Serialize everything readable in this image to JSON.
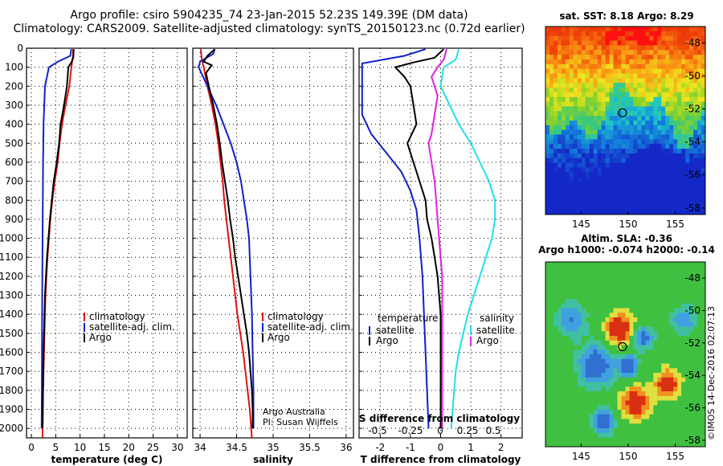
{
  "header": {
    "line1": "Argo profile: csiro 5904235_74 23-Jan-2015 52.23S 149.39E (DM data)",
    "line2": "Climatology: CARS2009. Satellite-adjusted climatology: synTS_20150123.nc (0.72d earlier)"
  },
  "colors": {
    "climatology": "#e01010",
    "satellite": "#1020c8",
    "argo": "#000000",
    "sat_salinity": "#20e0e8",
    "argo_salinity": "#e020e0"
  },
  "chart_data": [
    {
      "type": "line",
      "id": "temperature",
      "xlabel": "temperature (deg C)",
      "ylim": [
        2050,
        0
      ],
      "xlim": [
        -1,
        32
      ],
      "xticks": [
        "0",
        "5",
        "10",
        "15",
        "20",
        "25",
        "30"
      ],
      "yticks": [
        "0",
        "100",
        "200",
        "300",
        "400",
        "500",
        "600",
        "700",
        "800",
        "900",
        "1000",
        "1100",
        "1200",
        "1300",
        "1400",
        "1500",
        "1600",
        "1700",
        "1800",
        "1900",
        "2000"
      ],
      "grid": true,
      "legend": [
        "climatology",
        "satellite-adj. clim.",
        "Argo"
      ],
      "series": [
        {
          "name": "climatology",
          "color": "#e01010",
          "points": [
            [
              8.6,
              5
            ],
            [
              8.5,
              50
            ],
            [
              8.2,
              100
            ],
            [
              7.8,
              200
            ],
            [
              7.0,
              300
            ],
            [
              6.3,
              400
            ],
            [
              5.8,
              500
            ],
            [
              5.4,
              600
            ],
            [
              4.8,
              700
            ],
            [
              4.3,
              800
            ],
            [
              3.9,
              900
            ],
            [
              3.6,
              1000
            ],
            [
              3.3,
              1100
            ],
            [
              3.1,
              1200
            ],
            [
              2.9,
              1300
            ],
            [
              2.8,
              1400
            ],
            [
              2.7,
              1500
            ],
            [
              2.6,
              1600
            ],
            [
              2.5,
              1700
            ],
            [
              2.4,
              1800
            ],
            [
              2.35,
              1900
            ],
            [
              2.3,
              2000
            ],
            [
              2.3,
              2050
            ]
          ]
        },
        {
          "name": "satellite-adj. clim.",
          "color": "#1020c8",
          "points": [
            [
              8.2,
              5
            ],
            [
              8.0,
              40
            ],
            [
              5.5,
              70
            ],
            [
              3.6,
              100
            ],
            [
              2.8,
              200
            ],
            [
              2.5,
              400
            ],
            [
              2.4,
              600
            ],
            [
              2.3,
              1000
            ],
            [
              2.2,
              1400
            ],
            [
              2.15,
              1800
            ],
            [
              2.1,
              2000
            ]
          ]
        },
        {
          "name": "Argo",
          "color": "#000000",
          "points": [
            [
              8.7,
              5
            ],
            [
              8.6,
              50
            ],
            [
              8.2,
              75
            ],
            [
              7.6,
              100
            ],
            [
              7.3,
              200
            ],
            [
              6.7,
              300
            ],
            [
              6.0,
              400
            ],
            [
              5.7,
              500
            ],
            [
              5.2,
              600
            ],
            [
              4.6,
              700
            ],
            [
              4.2,
              800
            ],
            [
              3.8,
              900
            ],
            [
              3.5,
              1000
            ],
            [
              3.2,
              1100
            ],
            [
              3.0,
              1200
            ],
            [
              2.8,
              1300
            ],
            [
              2.7,
              1400
            ],
            [
              2.6,
              1500
            ],
            [
              2.5,
              1600
            ],
            [
              2.45,
              1700
            ],
            [
              2.4,
              1800
            ],
            [
              2.35,
              1900
            ],
            [
              2.3,
              2000
            ]
          ]
        }
      ]
    },
    {
      "type": "line",
      "id": "salinity",
      "xlabel": "salinity",
      "ylim": [
        2050,
        0
      ],
      "xlim": [
        33.9,
        36.1
      ],
      "xticks": [
        "34",
        "34.5",
        "35",
        "35.5",
        "36"
      ],
      "grid": true,
      "legend": [
        "climatology",
        "satellite-adj. clim.",
        "Argo"
      ],
      "credits": [
        "Argo Australia",
        "PI: Susan Wijffels"
      ],
      "series": [
        {
          "name": "climatology",
          "color": "#e01010",
          "points": [
            [
              34.01,
              5
            ],
            [
              34.02,
              50
            ],
            [
              34.05,
              100
            ],
            [
              34.1,
              200
            ],
            [
              34.16,
              300
            ],
            [
              34.21,
              400
            ],
            [
              34.25,
              500
            ],
            [
              34.28,
              600
            ],
            [
              34.31,
              700
            ],
            [
              34.33,
              800
            ],
            [
              34.36,
              900
            ],
            [
              34.39,
              1000
            ],
            [
              34.42,
              1100
            ],
            [
              34.45,
              1200
            ],
            [
              34.48,
              1300
            ],
            [
              34.51,
              1400
            ],
            [
              34.55,
              1500
            ],
            [
              34.59,
              1600
            ],
            [
              34.62,
              1700
            ],
            [
              34.65,
              1800
            ],
            [
              34.68,
              1900
            ],
            [
              34.7,
              2000
            ],
            [
              34.71,
              2050
            ]
          ]
        },
        {
          "name": "satellite-adj. clim.",
          "color": "#1020c8",
          "points": [
            [
              34.2,
              5
            ],
            [
              34.18,
              30
            ],
            [
              34.0,
              70
            ],
            [
              33.98,
              100
            ],
            [
              34.1,
              200
            ],
            [
              34.22,
              300
            ],
            [
              34.32,
              400
            ],
            [
              34.42,
              500
            ],
            [
              34.5,
              600
            ],
            [
              34.56,
              700
            ],
            [
              34.6,
              800
            ],
            [
              34.64,
              900
            ],
            [
              34.67,
              1000
            ],
            [
              34.69,
              1200
            ],
            [
              34.71,
              1400
            ],
            [
              34.72,
              1600
            ],
            [
              34.73,
              1800
            ],
            [
              34.73,
              2000
            ]
          ]
        },
        {
          "name": "Argo",
          "color": "#000000",
          "points": [
            [
              34.2,
              5
            ],
            [
              34.1,
              40
            ],
            [
              34.05,
              70
            ],
            [
              34.16,
              90
            ],
            [
              34.08,
              130
            ],
            [
              34.12,
              200
            ],
            [
              34.18,
              300
            ],
            [
              34.23,
              400
            ],
            [
              34.27,
              500
            ],
            [
              34.3,
              600
            ],
            [
              34.34,
              700
            ],
            [
              34.38,
              800
            ],
            [
              34.41,
              900
            ],
            [
              34.45,
              1000
            ],
            [
              34.48,
              1100
            ],
            [
              34.52,
              1200
            ],
            [
              34.56,
              1300
            ],
            [
              34.6,
              1400
            ],
            [
              34.64,
              1500
            ],
            [
              34.67,
              1600
            ],
            [
              34.69,
              1700
            ],
            [
              34.71,
              1800
            ],
            [
              34.72,
              1900
            ],
            [
              34.72,
              2000
            ]
          ]
        }
      ]
    },
    {
      "type": "line",
      "id": "difference",
      "xlabel": "T difference from climatology",
      "xlim": [
        -2.7,
        2.7
      ],
      "ylim": [
        2050,
        0
      ],
      "xticks": [
        "-2",
        "-1",
        "0",
        "1",
        "2"
      ],
      "s_xlabel": "S difference from climatology",
      "s_xticks": [
        "-0.5",
        "-0.25",
        "0",
        "0.25",
        "0.5"
      ],
      "grid": true,
      "legend_left_title": "temperature",
      "legend_right_title": "salinity",
      "legend_left": [
        "satellite",
        "Argo"
      ],
      "legend_right": [
        "satellite",
        "Argo"
      ],
      "series": [
        {
          "name": "T satellite",
          "color": "#1020c8",
          "points": [
            [
              -0.5,
              5
            ],
            [
              -1.2,
              40
            ],
            [
              -2.6,
              80
            ],
            [
              -2.6,
              350
            ],
            [
              -2.3,
              450
            ],
            [
              -1.8,
              550
            ],
            [
              -1.3,
              650
            ],
            [
              -1.0,
              750
            ],
            [
              -0.8,
              850
            ],
            [
              -0.7,
              1000
            ],
            [
              -0.6,
              1200
            ],
            [
              -0.55,
              1400
            ],
            [
              -0.5,
              1600
            ],
            [
              -0.45,
              1800
            ],
            [
              -0.4,
              2000
            ]
          ]
        },
        {
          "name": "T Argo",
          "color": "#000000",
          "points": [
            [
              0.1,
              5
            ],
            [
              -0.2,
              50
            ],
            [
              -0.9,
              75
            ],
            [
              -1.5,
              100
            ],
            [
              -1.2,
              150
            ],
            [
              -1.0,
              200
            ],
            [
              -0.9,
              300
            ],
            [
              -0.8,
              400
            ],
            [
              -1.1,
              500
            ],
            [
              -0.9,
              600
            ],
            [
              -0.7,
              700
            ],
            [
              -0.5,
              800
            ],
            [
              -0.45,
              900
            ],
            [
              -0.3,
              1000
            ],
            [
              -0.2,
              1100
            ],
            [
              -0.1,
              1200
            ],
            [
              -0.05,
              1300
            ],
            [
              0.0,
              1400
            ],
            [
              0.0,
              1600
            ],
            [
              0.0,
              1800
            ],
            [
              0.0,
              2000
            ]
          ]
        },
        {
          "name": "S satellite",
          "color": "#20e0e8",
          "points": [
            [
              0.6,
              5
            ],
            [
              0.5,
              60
            ],
            [
              0.1,
              100
            ],
            [
              0.0,
              200
            ],
            [
              0.3,
              300
            ],
            [
              0.6,
              400
            ],
            [
              1.0,
              500
            ],
            [
              1.3,
              600
            ],
            [
              1.6,
              700
            ],
            [
              1.8,
              800
            ],
            [
              1.8,
              900
            ],
            [
              1.7,
              1000
            ],
            [
              1.5,
              1100
            ],
            [
              1.3,
              1200
            ],
            [
              1.1,
              1300
            ],
            [
              0.9,
              1400
            ],
            [
              0.75,
              1500
            ],
            [
              0.6,
              1600
            ],
            [
              0.5,
              1700
            ],
            [
              0.45,
              1800
            ],
            [
              0.4,
              1900
            ],
            [
              0.35,
              2000
            ]
          ]
        },
        {
          "name": "S Argo",
          "color": "#e020e0",
          "points": [
            [
              0.2,
              5
            ],
            [
              0.1,
              60
            ],
            [
              -0.1,
              100
            ],
            [
              -0.3,
              150
            ],
            [
              -0.1,
              250
            ],
            [
              -0.2,
              350
            ],
            [
              -0.3,
              450
            ],
            [
              -0.4,
              500
            ],
            [
              -0.3,
              600
            ],
            [
              -0.2,
              700
            ],
            [
              -0.15,
              800
            ],
            [
              -0.1,
              900
            ],
            [
              -0.05,
              1000
            ],
            [
              0.0,
              1100
            ],
            [
              0.05,
              1200
            ],
            [
              0.05,
              1400
            ],
            [
              0.05,
              1600
            ],
            [
              0.05,
              1800
            ],
            [
              0.05,
              2000
            ]
          ]
        }
      ]
    },
    {
      "type": "heatmap",
      "id": "sst_map",
      "title": "sat. SST: 8.18 Argo: 8.29",
      "xticks": [
        "145",
        "150",
        "155"
      ],
      "yticks": [
        "-48",
        "-50",
        "-52",
        "-54",
        "-56",
        "-58"
      ],
      "marker": {
        "lon": 149.39,
        "lat": -52.23
      }
    },
    {
      "type": "heatmap",
      "id": "sla_map",
      "title_line1": "Altim. SLA: -0.36",
      "title_line2": "Argo h1000: -0.074 h2000: -0.14",
      "xticks": [
        "145",
        "150",
        "155"
      ],
      "yticks": [
        "-48",
        "-50",
        "-52",
        "-54",
        "-56",
        "-58"
      ],
      "marker": {
        "lon": 149.39,
        "lat": -52.23
      },
      "side_label": "©IMOS 14-Dec-2016 02:07:13"
    }
  ]
}
